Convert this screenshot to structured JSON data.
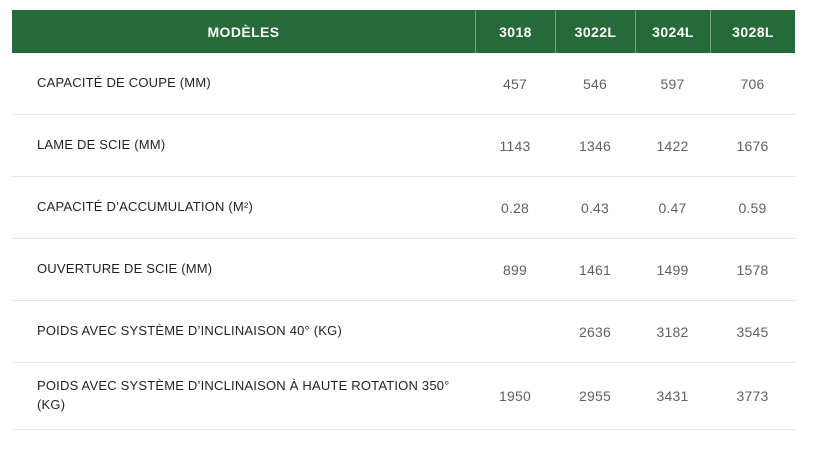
{
  "table": {
    "header": {
      "label": "MODÈLES",
      "models": [
        "3018",
        "3022L",
        "3024L",
        "3028L"
      ]
    },
    "rows": [
      {
        "label": "CAPACITÉ DE COUPE (MM)",
        "values": [
          "457",
          "546",
          "597",
          "706"
        ]
      },
      {
        "label": "LAME DE SCIE (MM)",
        "values": [
          "1143",
          "1346",
          "1422",
          "1676"
        ]
      },
      {
        "label": "CAPACITÉ D’ACCUMULATION (M²)",
        "values": [
          "0.28",
          "0.43",
          "0.47",
          "0.59"
        ]
      },
      {
        "label": "OUVERTURE DE SCIE (MM)",
        "values": [
          "899",
          "1461",
          "1499",
          "1578"
        ]
      },
      {
        "label": "POIDS AVEC SYSTÈME D’INCLINAISON 40° (KG)",
        "values": [
          "",
          "2636",
          "3182",
          "3545"
        ]
      },
      {
        "label": "POIDS AVEC SYSTÈME D’INCLINAISON À HAUTE ROTATION 350° (KG)",
        "values": [
          "1950",
          "2955",
          "3431",
          "3773"
        ]
      }
    ],
    "colors": {
      "header_bg": "#256a38",
      "header_text": "#ffffff",
      "header_divider": "rgba(255,255,255,0.38)",
      "row_divider": "#e4e4e4",
      "label_text": "#1e2124",
      "value_text": "#5d6166"
    }
  },
  "chart_data": {
    "type": "table",
    "title": "MODÈLES",
    "columns": [
      "MODÈLES",
      "3018",
      "3022L",
      "3024L",
      "3028L"
    ],
    "rows": [
      [
        "CAPACITÉ DE COUPE (MM)",
        "457",
        "546",
        "597",
        "706"
      ],
      [
        "LAME DE SCIE (MM)",
        "1143",
        "1346",
        "1422",
        "1676"
      ],
      [
        "CAPACITÉ D’ACCUMULATION (M²)",
        "0.28",
        "0.43",
        "0.47",
        "0.59"
      ],
      [
        "OUVERTURE DE SCIE (MM)",
        "899",
        "1461",
        "1499",
        "1578"
      ],
      [
        "POIDS AVEC SYSTÈME D’INCLINAISON 40° (KG)",
        "",
        "2636",
        "3182",
        "3545"
      ],
      [
        "POIDS AVEC SYSTÈME D’INCLINAISON À HAUTE ROTATION 350° (KG)",
        "1950",
        "2955",
        "3431",
        "3773"
      ]
    ]
  }
}
